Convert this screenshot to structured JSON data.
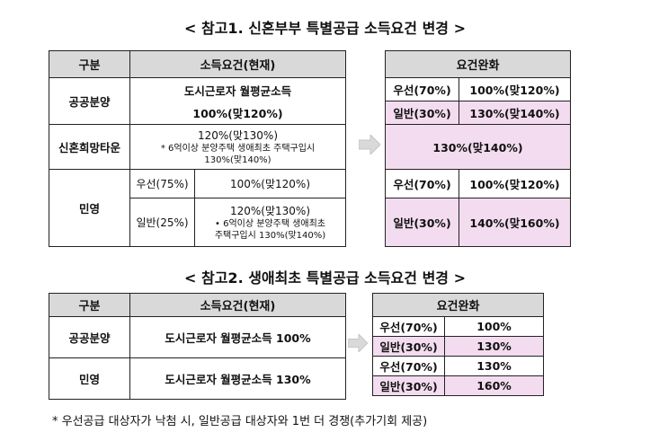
{
  "ref1": {
    "title": "< 참고1. 신혼부부 특별공급 소득요건 변경 >",
    "left": {
      "h_div": "구분",
      "h_cur": "소득요건(현재)",
      "public_label": "공공분양",
      "public_line1": "도시근로자 월평균소득",
      "public_line2": "100%(맞120%)",
      "hope_label": "신혼희망타운",
      "hope_line1": "120%(맞130%)",
      "hope_note1": "* 6억이상 분양주택 생애최초 주택구입시",
      "hope_note2": "130%(맞140%)",
      "private_label": "민영",
      "pri_pref_label": "우선(75%)",
      "pri_pref_val": "100%(맞120%)",
      "pri_gen_label": "일반(25%)",
      "pri_gen_line1": "120%(맞130%)",
      "pri_gen_note1": "6억이상 분양주택 생애최초",
      "pri_gen_note2": "주택구입시 130%(맞140%)"
    },
    "right": {
      "h_relax": "요건완화",
      "pub_pref_label": "우선(70%)",
      "pub_pref_val": "100%(맞120%)",
      "pub_gen_label": "일반(30%)",
      "pub_gen_val": "130%(맞140%)",
      "hope_val": "130%(맞140%)",
      "pri_pref_label": "우선(70%)",
      "pri_pref_val": "100%(맞120%)",
      "pri_gen_label": "일반(30%)",
      "pri_gen_val": "140%(맞160%)"
    }
  },
  "ref2": {
    "title": "< 참고2. 생애최초 특별공급 소득요건 변경 >",
    "left": {
      "h_div": "구분",
      "h_cur": "소득요건(현재)",
      "public_label": "공공분양",
      "public_val": "도시근로자 월평균소득 100%",
      "private_label": "민영",
      "private_val": "도시근로자 월평균소득 130%"
    },
    "right": {
      "h_relax": "요건완화",
      "pub_pref_label": "우선(70%)",
      "pub_pref_val": "100%",
      "pub_gen_label": "일반(30%)",
      "pub_gen_val": "130%",
      "pri_pref_label": "우선(70%)",
      "pri_pref_val": "130%",
      "pri_gen_label": "일반(30%)",
      "pri_gen_val": "160%"
    }
  },
  "footnote": "* 우선공급 대상자가 낙첨 시, 일반공급 대상자와 1번 더 경쟁(추가기회 제공)",
  "colors": {
    "header": "#d9d9d9",
    "pink": "#f3dcef",
    "arrow": "#d9d9d9"
  },
  "icons": [
    "arrow-right-icon"
  ]
}
